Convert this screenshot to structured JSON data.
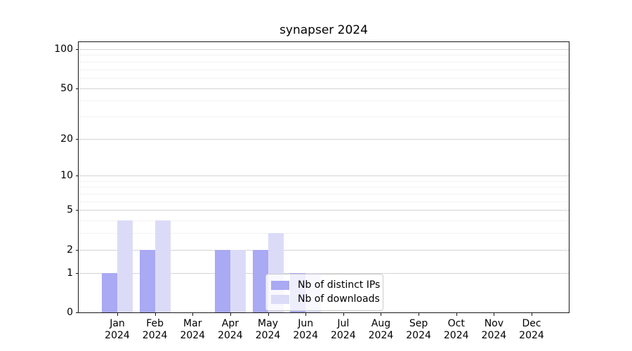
{
  "chart_data": {
    "type": "bar",
    "title": "synapser 2024",
    "categories": [
      {
        "month": "Jan",
        "year": "2024"
      },
      {
        "month": "Feb",
        "year": "2024"
      },
      {
        "month": "Mar",
        "year": "2024"
      },
      {
        "month": "Apr",
        "year": "2024"
      },
      {
        "month": "May",
        "year": "2024"
      },
      {
        "month": "Jun",
        "year": "2024"
      },
      {
        "month": "Jul",
        "year": "2024"
      },
      {
        "month": "Aug",
        "year": "2024"
      },
      {
        "month": "Sep",
        "year": "2024"
      },
      {
        "month": "Oct",
        "year": "2024"
      },
      {
        "month": "Nov",
        "year": "2024"
      },
      {
        "month": "Dec",
        "year": "2024"
      }
    ],
    "series": [
      {
        "name": "Nb of distinct IPs",
        "color": "#a9a9f4",
        "values": [
          1,
          2,
          0,
          2,
          2,
          1,
          0,
          0,
          0,
          0,
          0,
          0
        ]
      },
      {
        "name": "Nb of downloads",
        "color": "#dbdbf8",
        "values": [
          4,
          4,
          0,
          2,
          3,
          1,
          0,
          0,
          0,
          0,
          0,
          0
        ]
      }
    ],
    "y_axis": {
      "scale": "log1p",
      "major_ticks": [
        0,
        1,
        2,
        5,
        10,
        20,
        50,
        100
      ],
      "minor_gridlines": [
        3,
        4,
        6,
        7,
        8,
        9,
        30,
        40,
        60,
        70,
        80,
        90
      ],
      "ylim": [
        0,
        115
      ]
    },
    "grid": "horizontal",
    "legend_position": "inside-bottom-center"
  },
  "colors": {
    "grid_major": "#d4d4d4",
    "grid_minor": "#f2f2f2",
    "axis": "#1a1a1a",
    "legend_border": "#cccccc",
    "text": "#000000"
  }
}
